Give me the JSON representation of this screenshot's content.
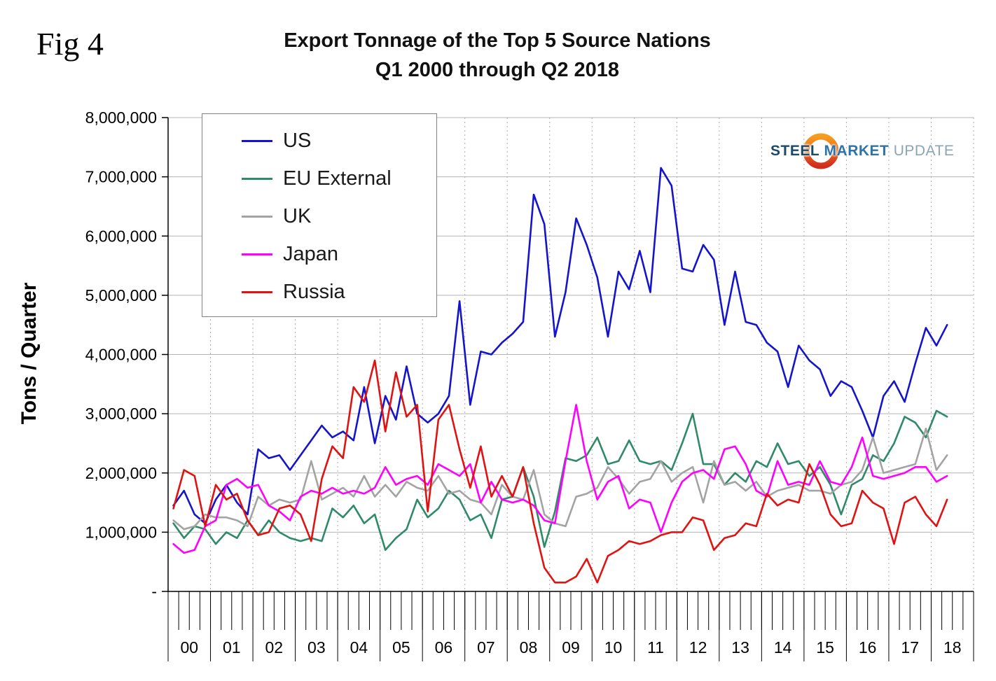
{
  "logo": {
    "steel": "STEEL",
    "market": "MARKET",
    "update": "UPDATE"
  },
  "chart_data": {
    "type": "line",
    "fig_label": "Fig 4",
    "title": "Export Tonnage of the Top 5 Source Nations",
    "subtitle": "Q1 2000 through Q2 2018",
    "xlabel": "",
    "ylabel": "Tons / Quarter",
    "ylim": [
      0,
      8000000
    ],
    "ytick_interval": 1000000,
    "ytick_labels": [
      "-",
      "1,000,000",
      "2,000,000",
      "3,000,000",
      "4,000,000",
      "5,000,000",
      "6,000,000",
      "7,000,000",
      "8,000,000"
    ],
    "x_years": [
      "00",
      "01",
      "02",
      "03",
      "04",
      "05",
      "06",
      "07",
      "08",
      "09",
      "10",
      "11",
      "12",
      "13",
      "14",
      "15",
      "16",
      "17",
      "18"
    ],
    "quarters_per_year": [
      4,
      4,
      4,
      4,
      4,
      4,
      4,
      4,
      4,
      4,
      4,
      4,
      4,
      4,
      4,
      4,
      4,
      4,
      2
    ],
    "grid": true,
    "legend_position": "top-left",
    "series": [
      {
        "name": "US",
        "color": "#1414cc",
        "values": [
          1450000,
          1700000,
          1300000,
          1150000,
          1550000,
          1800000,
          1500000,
          1300000,
          2400000,
          2250000,
          2300000,
          2050000,
          2300000,
          2550000,
          2800000,
          2600000,
          2700000,
          2550000,
          3450000,
          2500000,
          3300000,
          2900000,
          3800000,
          3000000,
          2850000,
          3000000,
          3300000,
          4900000,
          3150000,
          4050000,
          4000000,
          4200000,
          4350000,
          4550000,
          6700000,
          6200000,
          4300000,
          5050000,
          6300000,
          5850000,
          5300000,
          4300000,
          5400000,
          5100000,
          5750000,
          5050000,
          7150000,
          6850000,
          5450000,
          5400000,
          5850000,
          5600000,
          4500000,
          5400000,
          4550000,
          4500000,
          4200000,
          4050000,
          3450000,
          4150000,
          3900000,
          3750000,
          3300000,
          3550000,
          3450000,
          3050000,
          2600000,
          3300000,
          3550000,
          3200000,
          3850000,
          4450000,
          4150000,
          4500000
        ]
      },
      {
        "name": "EU External",
        "color": "#2f8a68",
        "values": [
          1150000,
          900000,
          1100000,
          1050000,
          800000,
          1000000,
          900000,
          1200000,
          950000,
          1200000,
          1000000,
          900000,
          850000,
          900000,
          850000,
          1400000,
          1250000,
          1450000,
          1150000,
          1300000,
          700000,
          900000,
          1050000,
          1550000,
          1250000,
          1400000,
          1700000,
          1550000,
          1200000,
          1300000,
          900000,
          1550000,
          1600000,
          2100000,
          1600000,
          750000,
          1350000,
          2250000,
          2200000,
          2300000,
          2600000,
          2150000,
          2200000,
          2550000,
          2200000,
          2150000,
          2200000,
          2050000,
          2500000,
          3000000,
          2150000,
          2150000,
          1800000,
          2000000,
          1850000,
          2200000,
          2100000,
          2500000,
          2150000,
          2200000,
          1950000,
          2100000,
          1800000,
          1300000,
          1800000,
          1900000,
          2300000,
          2200000,
          2500000,
          2950000,
          2850000,
          2600000,
          3050000,
          2950000
        ]
      },
      {
        "name": "UK",
        "color": "#a3a3a3",
        "values": [
          1200000,
          1050000,
          1100000,
          1300000,
          1250000,
          1250000,
          1200000,
          1100000,
          1600000,
          1450000,
          1550000,
          1500000,
          1550000,
          2200000,
          1550000,
          1650000,
          1750000,
          1600000,
          1950000,
          1600000,
          1800000,
          1600000,
          1850000,
          1750000,
          1700000,
          1950000,
          1650000,
          1700000,
          1550000,
          1500000,
          1300000,
          1800000,
          1600000,
          1550000,
          2050000,
          1300000,
          1150000,
          1100000,
          1600000,
          1650000,
          1750000,
          2100000,
          1900000,
          1650000,
          1850000,
          1900000,
          2200000,
          1850000,
          2000000,
          2100000,
          1500000,
          2200000,
          1800000,
          1850000,
          1700000,
          1850000,
          1600000,
          1700000,
          1750000,
          1800000,
          1700000,
          1700000,
          1650000,
          1800000,
          1850000,
          2050000,
          2600000,
          2000000,
          2050000,
          2100000,
          2150000,
          2750000,
          2050000,
          2300000
        ]
      },
      {
        "name": "Japan",
        "color": "#ff00ff",
        "values": [
          800000,
          650000,
          700000,
          1100000,
          1200000,
          1800000,
          1900000,
          1750000,
          1800000,
          1450000,
          1350000,
          1200000,
          1600000,
          1700000,
          1650000,
          1750000,
          1650000,
          1700000,
          1650000,
          1750000,
          2100000,
          1800000,
          1900000,
          1950000,
          1800000,
          2150000,
          2050000,
          1950000,
          2150000,
          1500000,
          1850000,
          1550000,
          1500000,
          1550000,
          1450000,
          1200000,
          1150000,
          2200000,
          3150000,
          2200000,
          1550000,
          1850000,
          1950000,
          1400000,
          1550000,
          1500000,
          1000000,
          1500000,
          1850000,
          2000000,
          2050000,
          1900000,
          2400000,
          2450000,
          2150000,
          1700000,
          1600000,
          2200000,
          1800000,
          1850000,
          1800000,
          2200000,
          1850000,
          1800000,
          2100000,
          2600000,
          1950000,
          1900000,
          1950000,
          2000000,
          2100000,
          2100000,
          1850000,
          1950000
        ]
      },
      {
        "name": "Russia",
        "color": "#e01212",
        "values": [
          1400000,
          2050000,
          1950000,
          1100000,
          1800000,
          1550000,
          1650000,
          1200000,
          950000,
          1000000,
          1400000,
          1450000,
          1300000,
          850000,
          1900000,
          2450000,
          2250000,
          3450000,
          3200000,
          3900000,
          2700000,
          3700000,
          2950000,
          3150000,
          1350000,
          2900000,
          3150000,
          2400000,
          1750000,
          2450000,
          1600000,
          1950000,
          1600000,
          2100000,
          1150000,
          400000,
          150000,
          150000,
          250000,
          550000,
          150000,
          600000,
          700000,
          850000,
          800000,
          850000,
          950000,
          1000000,
          1000000,
          1250000,
          1200000,
          700000,
          900000,
          950000,
          1150000,
          1100000,
          1650000,
          1450000,
          1550000,
          1500000,
          2150000,
          1800000,
          1300000,
          1100000,
          1150000,
          1700000,
          1500000,
          1400000,
          800000,
          1500000,
          1600000,
          1300000,
          1100000,
          1550000
        ]
      }
    ]
  }
}
